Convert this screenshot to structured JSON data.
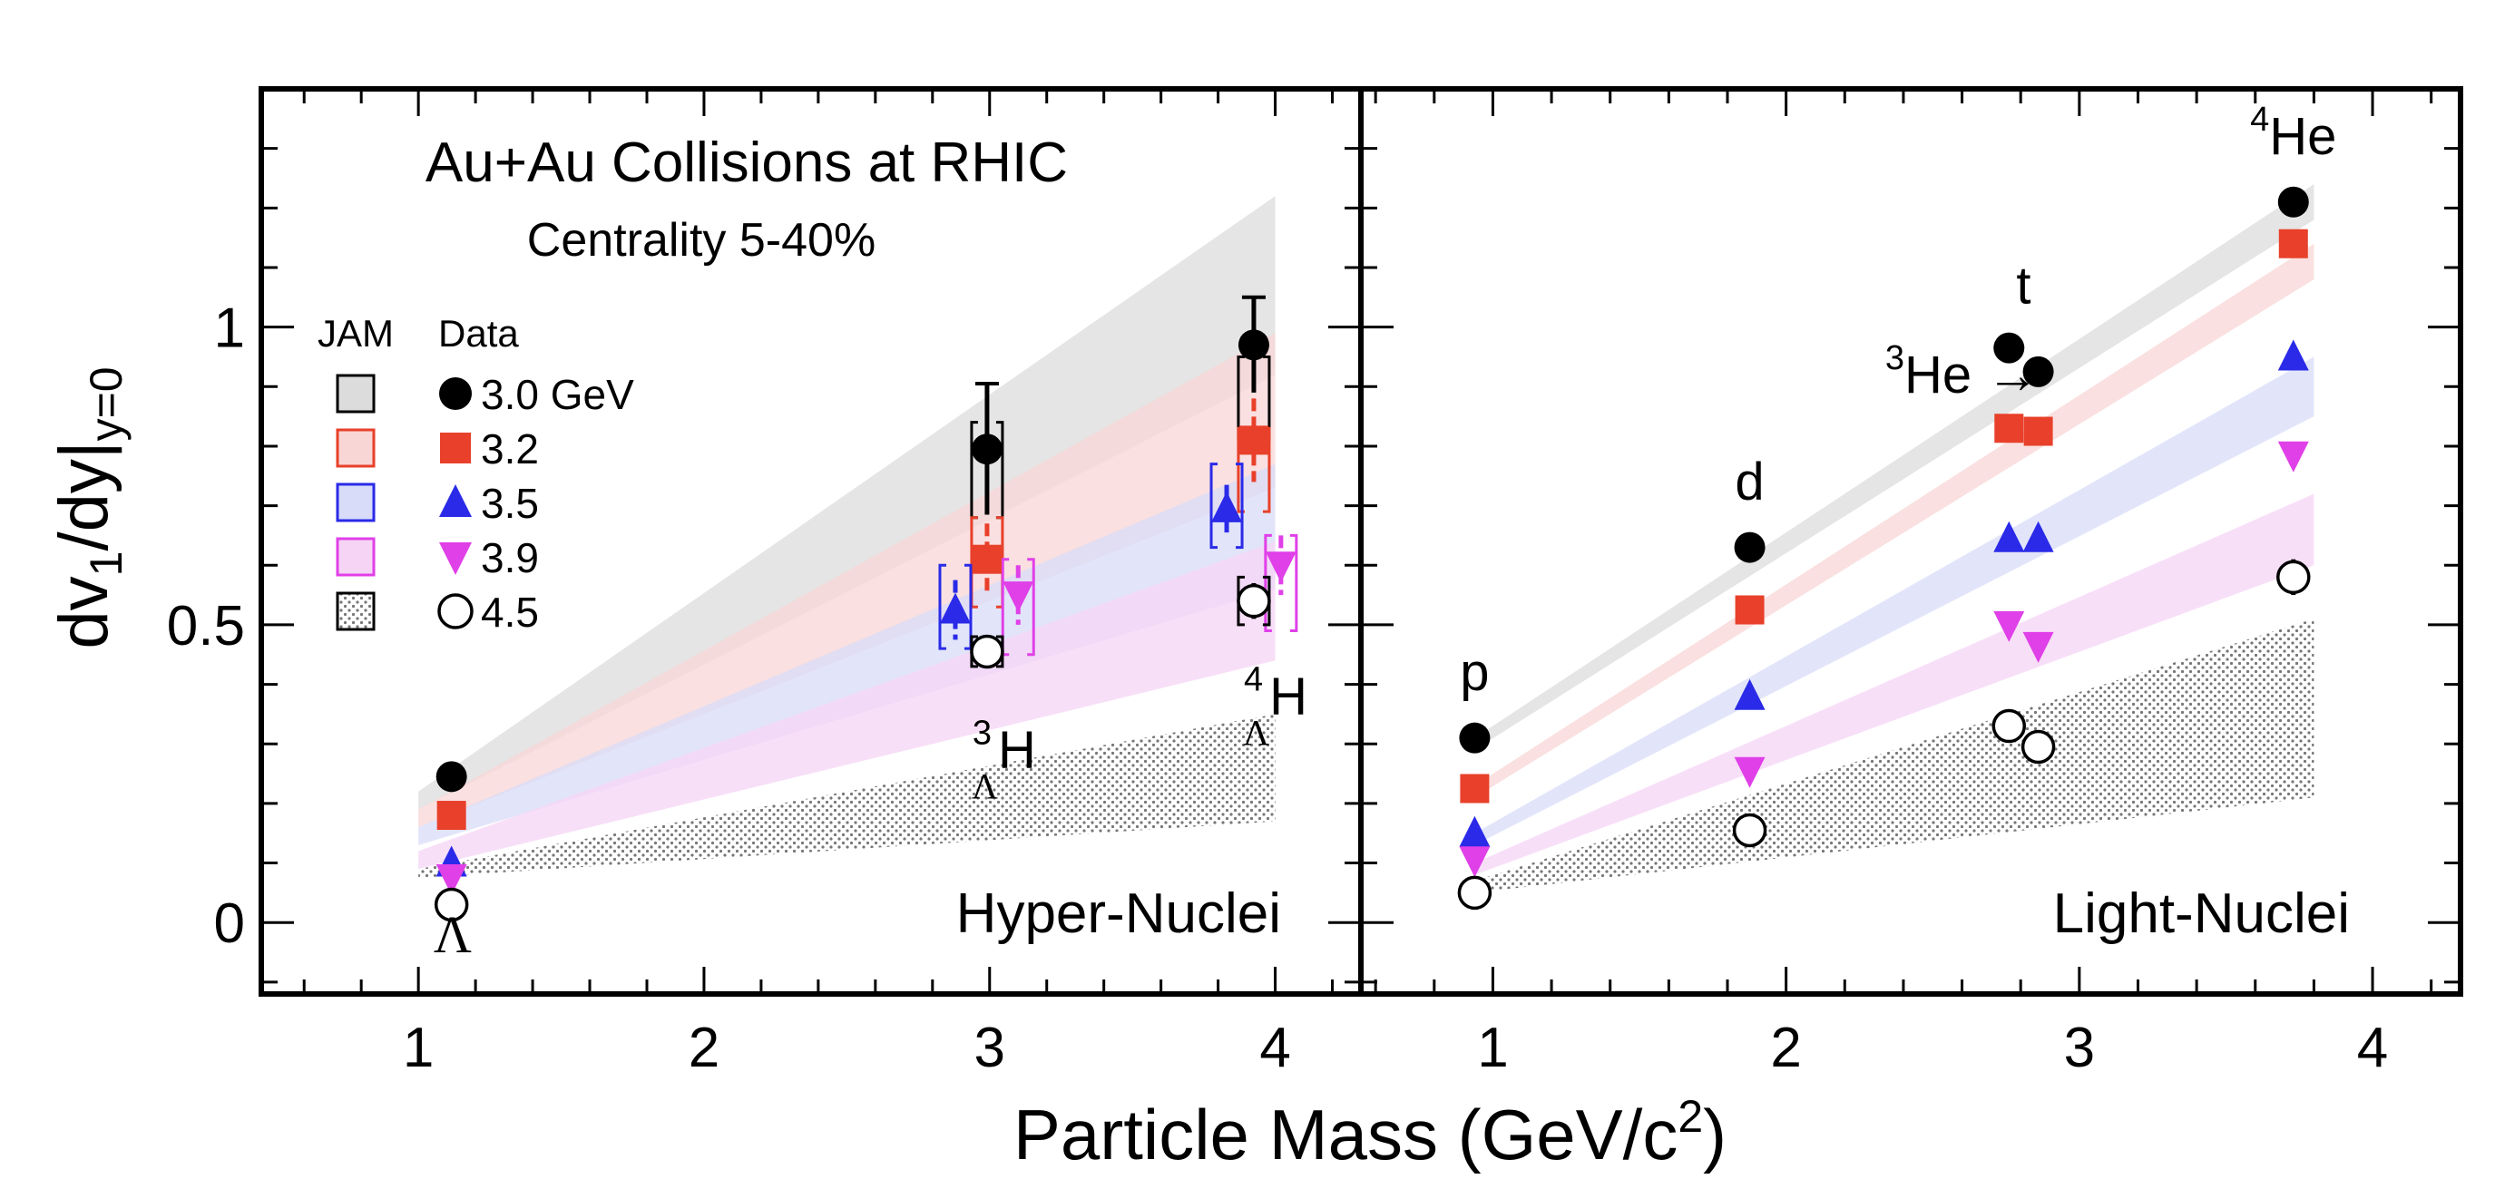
{
  "chart_data": {
    "type": "scatter",
    "xlabel_main": "Particle Mass (GeV/c",
    "xlabel_sup": "2",
    "xlabel_tail": ")",
    "ylabel_main": "dv",
    "ylabel_sub1": "1",
    "ylabel_mid": "/dy|",
    "ylabel_sub2": "y=0",
    "ylim": [
      -0.12,
      1.4
    ],
    "y_ticks": [
      "0",
      "0.5",
      "1"
    ],
    "y_tick_values": [
      0,
      0.5,
      1
    ],
    "colors": {
      "3.0": "#000000",
      "3.2": "#e8402a",
      "3.5": "#2a2ae8",
      "3.9": "#e040e8",
      "4.5": "#000000"
    },
    "band_colors": {
      "3.0": "#dcdcdc",
      "3.2": "#f8d6d6",
      "3.5": "#d8dcf8",
      "3.9": "#f6d4f6",
      "4.5": "#b8b8b8"
    },
    "legend": {
      "jam_header": "JAM",
      "data_header": "Data",
      "entries": [
        "3.0 GeV",
        "3.2",
        "3.5",
        "3.9",
        "4.5"
      ],
      "energies": [
        "3.0",
        "3.2",
        "3.5",
        "3.9",
        "4.5"
      ]
    },
    "panels": [
      {
        "name": "Hyper-Nuclei",
        "title": "Au+Au Collisions at RHIC",
        "subtitle": "Centrality 5-40%",
        "xlim": [
          0.45,
          4.3
        ],
        "x_ticks": [
          "1",
          "2",
          "3",
          "4"
        ],
        "x_tick_values": [
          1,
          2,
          3,
          4
        ],
        "particle_labels": [
          {
            "base": "Λ",
            "sup": "",
            "sub": "",
            "x": 1.12,
            "y": -0.05
          },
          {
            "base": "H",
            "sup": "3",
            "sub": "Λ",
            "x": 3.05,
            "y": 0.26
          },
          {
            "base": "H",
            "sup": "4",
            "sub": "Λ",
            "x": 4.0,
            "y": 0.35
          }
        ],
        "bands": [
          {
            "energy": "3.0",
            "x0": 1.0,
            "x1": 4.0,
            "low0": 0.19,
            "high0": 0.22,
            "low1": 0.92,
            "high1": 1.22
          },
          {
            "energy": "3.2",
            "x0": 1.0,
            "x1": 4.0,
            "low0": 0.16,
            "high0": 0.19,
            "low1": 0.73,
            "high1": 0.99
          },
          {
            "energy": "3.5",
            "x0": 1.0,
            "x1": 4.0,
            "low0": 0.13,
            "high0": 0.16,
            "low1": 0.56,
            "high1": 0.77
          },
          {
            "energy": "3.9",
            "x0": 1.0,
            "x1": 4.0,
            "low0": 0.09,
            "high0": 0.12,
            "low1": 0.44,
            "high1": 0.64
          },
          {
            "energy": "4.5",
            "x0": 1.0,
            "x1": 4.0,
            "low0": 0.075,
            "high0": 0.09,
            "low1": 0.17,
            "high1": 0.35
          }
        ],
        "series": [
          {
            "energy": "3.0",
            "marker": "circle",
            "points": [
              {
                "x": 1.116,
                "y": 0.245
              },
              {
                "x": 2.991,
                "y": 0.795,
                "err_lo": 0.11,
                "err_hi": 0.11,
                "sys_lo": 0.08,
                "sys_hi": 0.08,
                "sys_y": 0.76
              },
              {
                "x": 3.925,
                "y": 0.97,
                "err_lo": 0.08,
                "err_hi": 0.08,
                "sys_lo": 0.07,
                "sys_hi": 0.07,
                "sys_y": 0.88
              }
            ]
          },
          {
            "energy": "3.2",
            "marker": "square",
            "points": [
              {
                "x": 1.116,
                "y": 0.18
              },
              {
                "x": 2.991,
                "y": 0.61,
                "err_lo": 0.06,
                "err_hi": 0.06,
                "sys_lo": 0.09,
                "sys_hi": 0.06,
                "sys_y": 0.62
              },
              {
                "x": 3.925,
                "y": 0.81,
                "err_lo": 0.07,
                "err_hi": 0.07,
                "sys_lo": 0.07,
                "sys_hi": 0.07,
                "sys_y": 0.76
              }
            ]
          },
          {
            "energy": "3.5",
            "marker": "triangle-up",
            "points": [
              {
                "x": 1.116,
                "y": 0.1
              },
              {
                "x": 2.88,
                "y": 0.525,
                "err_lo": 0.05,
                "err_hi": 0.05,
                "sys_lo": 0.07,
                "sys_hi": 0.07,
                "sys_y": 0.53
              },
              {
                "x": 3.83,
                "y": 0.695,
                "err_lo": 0.04,
                "err_hi": 0.04,
                "sys_lo": 0.07,
                "sys_hi": 0.07,
                "sys_y": 0.7
              }
            ]
          },
          {
            "energy": "3.9",
            "marker": "triangle-down",
            "points": [
              {
                "x": 1.116,
                "y": 0.075
              },
              {
                "x": 3.1,
                "y": 0.55,
                "err_lo": 0.05,
                "err_hi": 0.05,
                "sys_lo": 0.09,
                "sys_hi": 0.07,
                "sys_y": 0.54
              },
              {
                "x": 4.02,
                "y": 0.6,
                "err_lo": 0.05,
                "err_hi": 0.05,
                "sys_lo": 0.09,
                "sys_hi": 0.07,
                "sys_y": 0.58
              }
            ]
          },
          {
            "energy": "4.5",
            "marker": "circle-open",
            "points": [
              {
                "x": 1.116,
                "y": 0.03
              },
              {
                "x": 2.991,
                "y": 0.455,
                "err_lo": 0.02,
                "err_hi": 0.02,
                "sys_lo": 0.025,
                "sys_hi": 0.025,
                "sys_y": 0.455
              },
              {
                "x": 3.925,
                "y": 0.54,
                "err_lo": 0.03,
                "err_hi": 0.03,
                "sys_lo": 0.04,
                "sys_hi": 0.04,
                "sys_y": 0.54
              }
            ]
          }
        ]
      },
      {
        "name": "Light-Nuclei",
        "title": "",
        "subtitle": "",
        "xlim": [
          0.55,
          4.3
        ],
        "x_ticks": [
          "1",
          "2",
          "3",
          "4"
        ],
        "x_tick_values": [
          1,
          2,
          3,
          4
        ],
        "particle_labels": [
          {
            "base": "p",
            "sup": "",
            "sub": "",
            "x": 0.938,
            "y": 0.39
          },
          {
            "base": "d",
            "sup": "",
            "sub": "",
            "x": 1.876,
            "y": 0.71
          },
          {
            "base": "t",
            "sup": "",
            "sub": "",
            "x": 2.81,
            "y": 1.04
          },
          {
            "base": "He →",
            "sup": "3",
            "sub": "",
            "x": 2.6,
            "y": 0.89
          },
          {
            "base": "He",
            "sup": "4",
            "sub": "",
            "x": 3.73,
            "y": 1.29
          }
        ],
        "bands": [
          {
            "energy": "3.0",
            "x0": 0.938,
            "x1": 3.8,
            "low0": 0.29,
            "high0": 0.31,
            "low1": 1.18,
            "high1": 1.24
          },
          {
            "energy": "3.2",
            "x0": 0.938,
            "x1": 3.8,
            "low0": 0.21,
            "high0": 0.23,
            "low1": 1.08,
            "high1": 1.14
          },
          {
            "energy": "3.5",
            "x0": 0.938,
            "x1": 3.8,
            "low0": 0.13,
            "high0": 0.15,
            "low1": 0.85,
            "high1": 0.95
          },
          {
            "energy": "3.9",
            "x0": 0.938,
            "x1": 3.8,
            "low0": 0.08,
            "high0": 0.1,
            "low1": 0.6,
            "high1": 0.72
          },
          {
            "energy": "4.5",
            "x0": 0.938,
            "x1": 3.8,
            "low0": 0.05,
            "high0": 0.07,
            "low1": 0.21,
            "high1": 0.51
          }
        ],
        "series": [
          {
            "energy": "3.0",
            "marker": "circle",
            "points": [
              {
                "x": 0.938,
                "y": 0.31
              },
              {
                "x": 1.876,
                "y": 0.63
              },
              {
                "x": 2.76,
                "y": 0.965
              },
              {
                "x": 2.86,
                "y": 0.925
              },
              {
                "x": 3.73,
                "y": 1.21
              }
            ]
          },
          {
            "energy": "3.2",
            "marker": "square",
            "points": [
              {
                "x": 0.938,
                "y": 0.225
              },
              {
                "x": 1.876,
                "y": 0.525
              },
              {
                "x": 2.76,
                "y": 0.83
              },
              {
                "x": 2.86,
                "y": 0.825
              },
              {
                "x": 3.73,
                "y": 1.14
              }
            ]
          },
          {
            "energy": "3.5",
            "marker": "triangle-up",
            "points": [
              {
                "x": 0.938,
                "y": 0.15
              },
              {
                "x": 1.876,
                "y": 0.38
              },
              {
                "x": 2.76,
                "y": 0.645
              },
              {
                "x": 2.86,
                "y": 0.645
              },
              {
                "x": 3.73,
                "y": 0.95
              }
            ]
          },
          {
            "energy": "3.9",
            "marker": "triangle-down",
            "points": [
              {
                "x": 0.938,
                "y": 0.105
              },
              {
                "x": 1.876,
                "y": 0.255
              },
              {
                "x": 2.76,
                "y": 0.5
              },
              {
                "x": 2.86,
                "y": 0.465
              },
              {
                "x": 3.73,
                "y": 0.785
              }
            ]
          },
          {
            "energy": "4.5",
            "marker": "circle-open",
            "points": [
              {
                "x": 0.938,
                "y": 0.05
              },
              {
                "x": 1.876,
                "y": 0.155
              },
              {
                "x": 2.76,
                "y": 0.33
              },
              {
                "x": 2.86,
                "y": 0.295
              },
              {
                "x": 3.73,
                "y": 0.58,
                "err_lo": 0.03,
                "err_hi": 0.03
              }
            ]
          }
        ]
      }
    ]
  }
}
